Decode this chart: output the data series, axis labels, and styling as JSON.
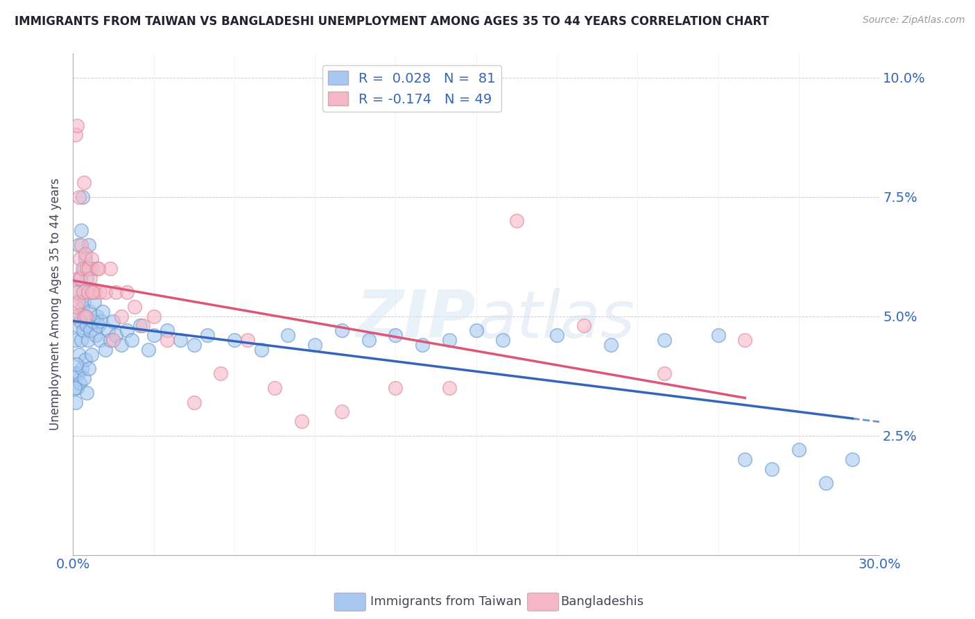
{
  "title": "IMMIGRANTS FROM TAIWAN VS BANGLADESHI UNEMPLOYMENT AMONG AGES 35 TO 44 YEARS CORRELATION CHART",
  "source": "Source: ZipAtlas.com",
  "ylabel": "Unemployment Among Ages 35 to 44 years",
  "xlim": [
    0.0,
    30.0
  ],
  "ylim": [
    0.0,
    10.5
  ],
  "yticks": [
    0.0,
    2.5,
    5.0,
    7.5,
    10.0
  ],
  "ytick_labels": [
    "",
    "2.5%",
    "5.0%",
    "7.5%",
    "10.0%"
  ],
  "xtick_labels": [
    "0.0%",
    "30.0%"
  ],
  "series1_color": "#A8C8F0",
  "series2_color": "#F5B8C8",
  "series1_edge": "#6699CC",
  "series2_edge": "#DD8899",
  "series1_label": "Immigrants from Taiwan",
  "series2_label": "Bangladeshis",
  "r1": 0.028,
  "n1": 81,
  "r2": -0.174,
  "n2": 49,
  "trend1_color": "#3366BB",
  "trend2_color": "#DD5577",
  "watermark": "ZIPatlas",
  "background_color": "#FFFFFF",
  "taiwan_x": [
    0.05,
    0.08,
    0.1,
    0.12,
    0.15,
    0.15,
    0.18,
    0.2,
    0.2,
    0.22,
    0.25,
    0.25,
    0.28,
    0.3,
    0.3,
    0.32,
    0.35,
    0.35,
    0.38,
    0.4,
    0.4,
    0.42,
    0.45,
    0.45,
    0.48,
    0.5,
    0.5,
    0.52,
    0.55,
    0.58,
    0.6,
    0.62,
    0.65,
    0.68,
    0.7,
    0.72,
    0.75,
    0.8,
    0.85,
    0.9,
    0.95,
    1.0,
    1.05,
    1.1,
    1.2,
    1.3,
    1.4,
    1.5,
    1.6,
    1.8,
    2.0,
    2.2,
    2.5,
    2.8,
    3.0,
    3.5,
    4.0,
    4.5,
    5.0,
    6.0,
    7.0,
    8.0,
    9.0,
    10.0,
    11.0,
    12.0,
    13.0,
    14.0,
    15.0,
    16.0,
    18.0,
    20.0,
    22.0,
    24.0,
    25.0,
    26.0,
    27.0,
    28.0,
    29.0,
    0.07,
    0.13
  ],
  "taiwan_y": [
    3.8,
    4.5,
    3.2,
    5.0,
    4.8,
    3.5,
    5.5,
    6.5,
    3.8,
    4.2,
    5.8,
    3.6,
    4.9,
    6.8,
    4.5,
    3.9,
    5.2,
    7.5,
    4.7,
    6.0,
    3.7,
    5.3,
    4.1,
    6.2,
    5.0,
    4.8,
    3.4,
    5.8,
    4.5,
    6.5,
    3.9,
    5.1,
    4.7,
    5.5,
    4.2,
    6.0,
    4.9,
    5.3,
    4.6,
    5.0,
    4.8,
    4.5,
    4.9,
    5.1,
    4.3,
    4.7,
    4.5,
    4.9,
    4.6,
    4.4,
    4.7,
    4.5,
    4.8,
    4.3,
    4.6,
    4.7,
    4.5,
    4.4,
    4.6,
    4.5,
    4.3,
    4.6,
    4.4,
    4.7,
    4.5,
    4.6,
    4.4,
    4.5,
    4.7,
    4.5,
    4.6,
    4.4,
    4.5,
    4.6,
    2.0,
    1.8,
    2.2,
    1.5,
    2.0,
    3.5,
    4.0
  ],
  "bangla_x": [
    0.05,
    0.08,
    0.1,
    0.12,
    0.15,
    0.18,
    0.2,
    0.22,
    0.25,
    0.28,
    0.3,
    0.35,
    0.38,
    0.4,
    0.45,
    0.5,
    0.55,
    0.6,
    0.65,
    0.7,
    0.8,
    0.9,
    1.0,
    1.2,
    1.4,
    1.6,
    1.8,
    2.0,
    2.3,
    2.6,
    3.0,
    3.5,
    4.5,
    5.5,
    6.5,
    7.5,
    8.5,
    10.0,
    12.0,
    14.0,
    16.5,
    19.0,
    22.0,
    25.0,
    0.42,
    0.48,
    0.72,
    0.95,
    1.5
  ],
  "bangla_y": [
    5.0,
    5.5,
    8.8,
    5.2,
    9.0,
    5.8,
    5.3,
    7.5,
    6.2,
    5.8,
    6.5,
    6.0,
    5.5,
    7.8,
    6.3,
    6.0,
    5.5,
    6.0,
    5.8,
    6.2,
    5.5,
    6.0,
    5.5,
    5.5,
    6.0,
    5.5,
    5.0,
    5.5,
    5.2,
    4.8,
    5.0,
    4.5,
    3.2,
    3.8,
    4.5,
    3.5,
    2.8,
    3.0,
    3.5,
    3.5,
    7.0,
    4.8,
    3.8,
    4.5,
    5.0,
    5.0,
    5.5,
    6.0,
    4.5
  ]
}
